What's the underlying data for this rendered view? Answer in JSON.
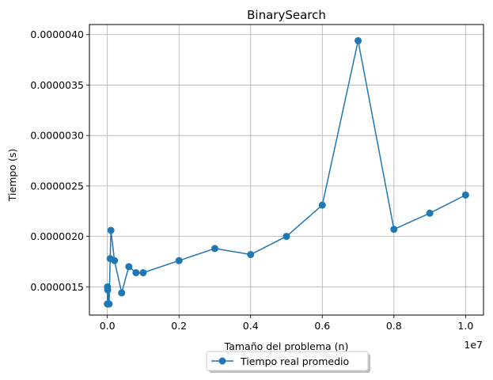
{
  "chart_data": {
    "type": "line",
    "title": "BinarySearch",
    "xlabel": "Tamaño del problema (n)",
    "ylabel": "Tiempo (s)",
    "x_offset_label": "1e7",
    "xlim": [
      -500000,
      10500000
    ],
    "ylim": [
      1.22e-06,
      4.1e-06
    ],
    "x_ticks": [
      {
        "value": 0,
        "label": "0.0"
      },
      {
        "value": 2000000,
        "label": "0.2"
      },
      {
        "value": 4000000,
        "label": "0.4"
      },
      {
        "value": 6000000,
        "label": "0.6"
      },
      {
        "value": 8000000,
        "label": "0.8"
      },
      {
        "value": 10000000,
        "label": "1.0"
      }
    ],
    "y_ticks": [
      {
        "value": 1.5e-06,
        "label": "0.0000015"
      },
      {
        "value": 2e-06,
        "label": "0.0000020"
      },
      {
        "value": 2.5e-06,
        "label": "0.0000025"
      },
      {
        "value": 3e-06,
        "label": "0.0000030"
      },
      {
        "value": 3.5e-06,
        "label": "0.0000035"
      },
      {
        "value": 4e-06,
        "label": "0.0000040"
      }
    ],
    "grid": true,
    "legend_position": "lower center, below plot",
    "series": [
      {
        "name": "Tiempo real promedio",
        "color": "#1f77b4",
        "marker": "circle",
        "x": [
          1000,
          5000,
          10000,
          50000,
          80000,
          100000,
          200000,
          400000,
          600000,
          800000,
          1000000,
          2000000,
          3000000,
          4000000,
          5000000,
          6000000,
          7000000,
          8000000,
          9000000,
          10000000
        ],
        "y": [
          1.33e-06,
          1.5e-06,
          1.47e-06,
          1.33e-06,
          1.78e-06,
          2.06e-06,
          1.76e-06,
          1.44e-06,
          1.7e-06,
          1.64e-06,
          1.64e-06,
          1.76e-06,
          1.88e-06,
          1.82e-06,
          2e-06,
          2.31e-06,
          3.94e-06,
          2.07e-06,
          2.23e-06,
          2.41e-06
        ]
      }
    ]
  }
}
